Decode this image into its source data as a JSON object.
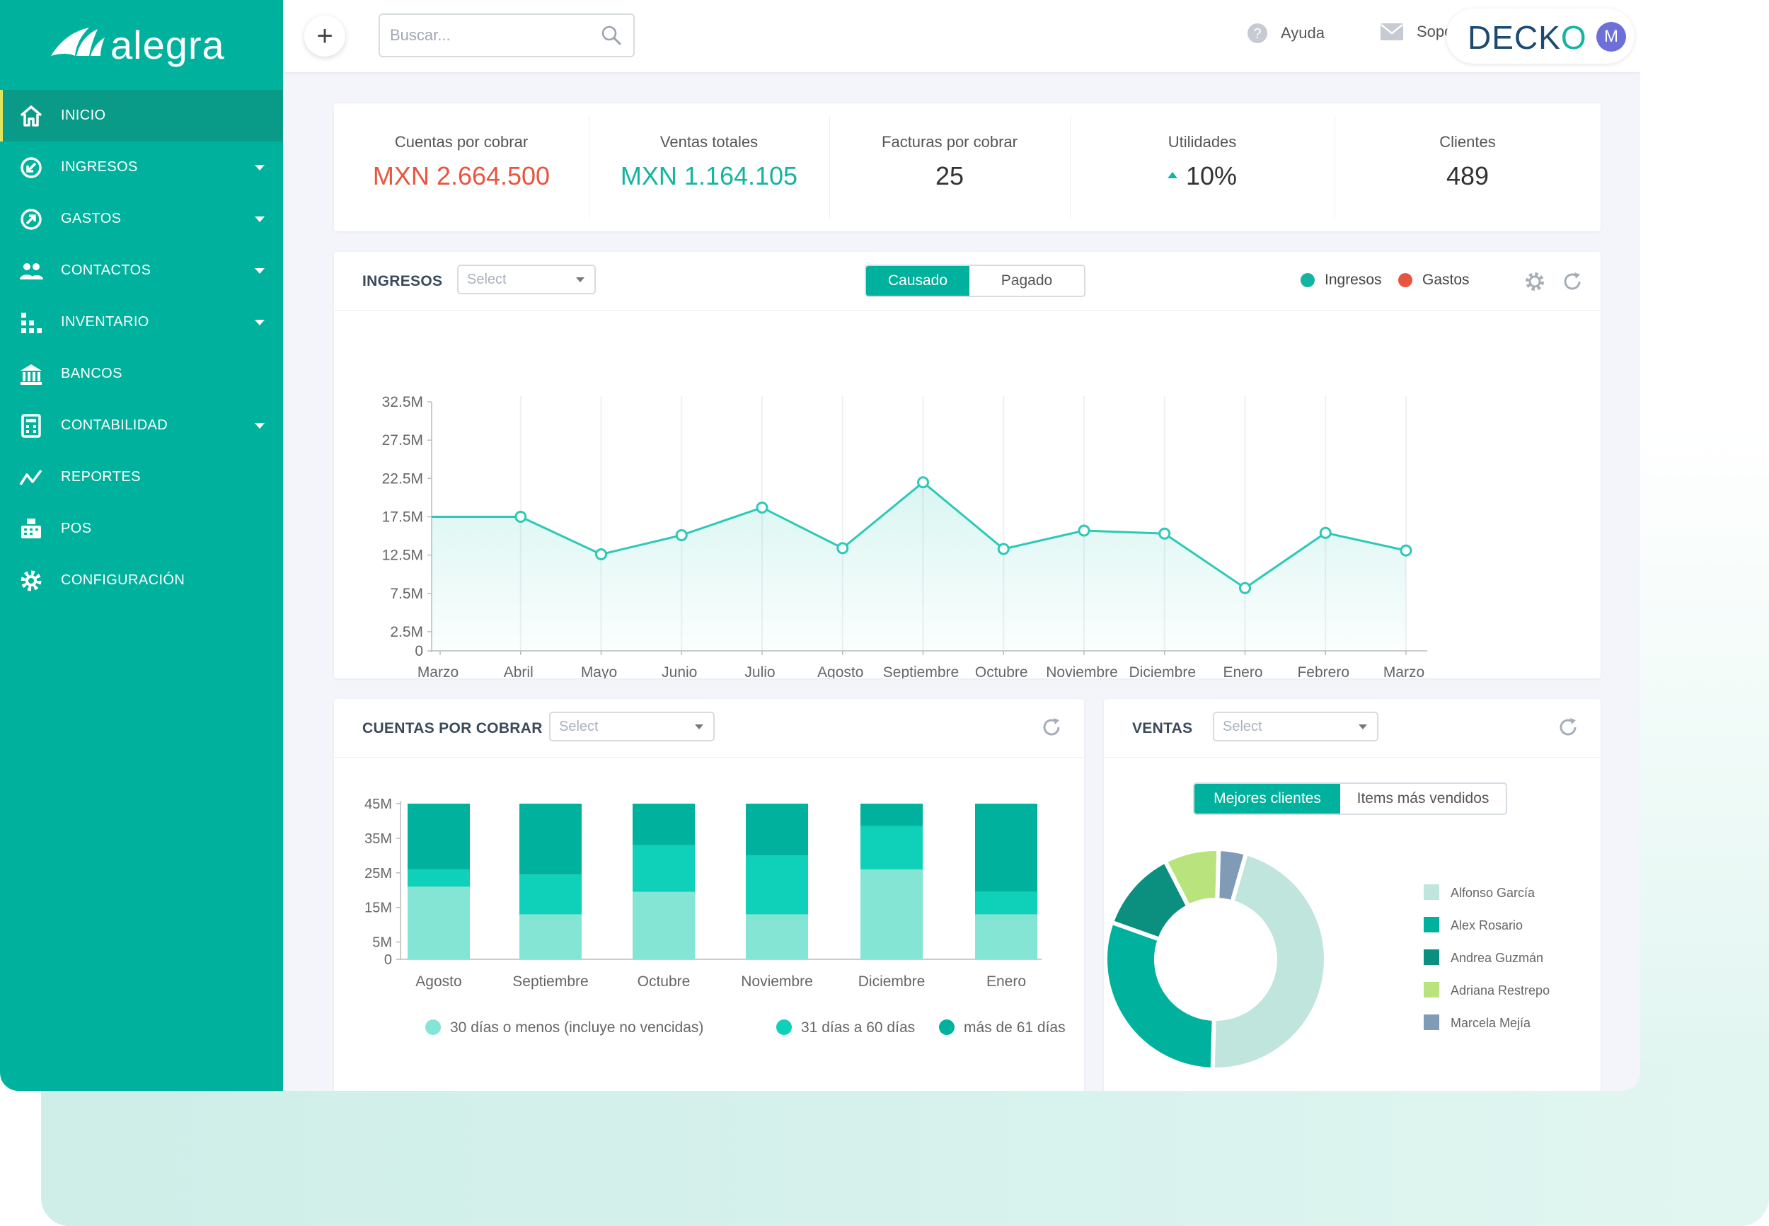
{
  "app": {
    "logo_text": "alegra",
    "brand": "DECKO",
    "brand_b": "O",
    "avatar_initial": "M"
  },
  "sidebar": {
    "items": [
      {
        "label": "INICIO",
        "icon": "home-icon",
        "active": true
      },
      {
        "label": "INGRESOS",
        "icon": "income-icon",
        "caret": true
      },
      {
        "label": "GASTOS",
        "icon": "expense-icon",
        "caret": true
      },
      {
        "label": "CONTACTOS",
        "icon": "contacts-icon",
        "caret": true
      },
      {
        "label": "INVENTARIO",
        "icon": "inventory-icon",
        "caret": true
      },
      {
        "label": "BANCOS",
        "icon": "bank-icon"
      },
      {
        "label": "CONTABILIDAD",
        "icon": "accounting-icon",
        "caret": true
      },
      {
        "label": "REPORTES",
        "icon": "reports-icon"
      },
      {
        "label": "POS",
        "icon": "pos-icon"
      },
      {
        "label": "CONFIGURACIÓN",
        "icon": "settings-icon"
      }
    ]
  },
  "topbar": {
    "add_label": "+",
    "search_placeholder": "Buscar...",
    "help_label": "Ayuda",
    "support_label": "Soporte"
  },
  "kpis": [
    {
      "label": "Cuentas por cobrar",
      "value": "MXN 2.664.500",
      "color": "#e8553e"
    },
    {
      "label": "Ventas totales",
      "value": "MXN 1.164.105",
      "color": "#13b4a2"
    },
    {
      "label": "Facturas por cobrar",
      "value": "25",
      "color": "#333333"
    },
    {
      "label": "Utilidades",
      "value": "10%",
      "color": "#333333",
      "trend": "up"
    },
    {
      "label": "Clientes",
      "value": "489",
      "color": "#333333"
    }
  ],
  "ingresos_card": {
    "title": "INGRESOS",
    "select_placeholder": "Select",
    "toggle": [
      "Causado",
      "Pagado"
    ],
    "toggle_active": 0,
    "legend": [
      {
        "label": "Ingresos",
        "color": "#13b4a2"
      },
      {
        "label": "Gastos",
        "color": "#e8553e"
      }
    ]
  },
  "cxc_card": {
    "title": "CUENTAS POR COBRAR",
    "select_placeholder": "Select"
  },
  "ventas_card": {
    "title": "VENTAS",
    "select_placeholder": "Select",
    "toggle": [
      "Mejores clientes",
      "Items más vendidos"
    ],
    "toggle_active": 0
  },
  "chart_data": [
    {
      "type": "line",
      "series": [
        {
          "name": "Ingresos",
          "color": "#2cc9b6",
          "values": [
            17.5,
            17.5,
            12.6,
            15.1,
            18.7,
            13.4,
            22.0,
            13.3,
            15.7,
            15.3,
            8.2,
            15.4,
            13.1
          ]
        }
      ],
      "categories": [
        "Marzo",
        "Abril",
        "Mayo",
        "Junio",
        "Julio",
        "Agosto",
        "Septiembre",
        "Octubre",
        "Noviembre",
        "Diciembre",
        "Enero",
        "Febrero",
        "Marzo"
      ],
      "yticks": [
        0,
        2.5,
        7.5,
        12.5,
        17.5,
        22.5,
        27.5,
        32.5
      ],
      "ytick_labels": [
        "0",
        "2.5M",
        "7.5M",
        "12.5M",
        "17.5M",
        "22.5M",
        "27.5M",
        "32.5M"
      ],
      "ylim": [
        0,
        32.5
      ],
      "grid": "vertical"
    },
    {
      "type": "bar",
      "stacked": true,
      "categories": [
        "Agosto",
        "Septiembre",
        "Octubre",
        "Noviembre",
        "Diciembre",
        "Enero"
      ],
      "series": [
        {
          "name": "30 días o menos (incluye no vencidas)",
          "color": "#84e5d5",
          "values": [
            21,
            13,
            19.5,
            13,
            26,
            13
          ]
        },
        {
          "name": "31 días a 60 días",
          "color": "#0fd0b8",
          "values": [
            5,
            11.5,
            13.5,
            17,
            12.5,
            6.5
          ]
        },
        {
          "name": "más de 61 días",
          "color": "#00b19d",
          "values": [
            19,
            20.5,
            12,
            15,
            6.5,
            25.5
          ]
        }
      ],
      "yticks": [
        0,
        5,
        15,
        25,
        35,
        45
      ],
      "ytick_labels": [
        "0",
        "5M",
        "15M",
        "25M",
        "35M",
        "45M"
      ],
      "ylim": [
        0,
        45
      ]
    },
    {
      "type": "pie",
      "donut": true,
      "labels": [
        "Alfonso García",
        "Alex Rosario",
        "Andrea Guzmán",
        "Adriana Restrepo",
        "Marcela Mejía"
      ],
      "colors": [
        "#c0e5dd",
        "#00b19d",
        "#0b8f7f",
        "#b9e47d",
        "#7f9bb5"
      ],
      "values": [
        46,
        30,
        12,
        8,
        4
      ]
    }
  ]
}
